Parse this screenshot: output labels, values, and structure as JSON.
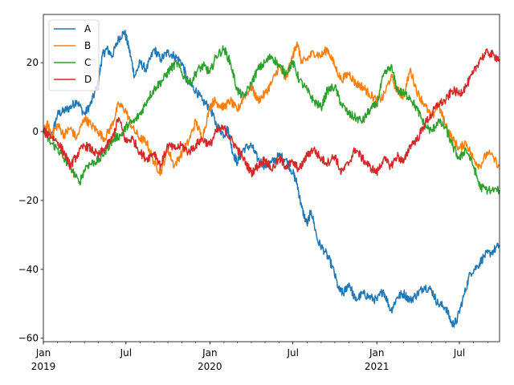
{
  "chart_data": {
    "type": "line",
    "x_axis": {
      "kind": "date",
      "start": "2019-01-01",
      "end": "2021-09-27",
      "major_ticks": [
        {
          "date": "2019-01-01",
          "label": "Jan",
          "sublabel": "2019"
        },
        {
          "date": "2019-07-01",
          "label": "Jul",
          "sublabel": ""
        },
        {
          "date": "2020-01-01",
          "label": "Jan",
          "sublabel": "2020"
        },
        {
          "date": "2020-07-01",
          "label": "Jul",
          "sublabel": ""
        },
        {
          "date": "2021-01-01",
          "label": "Jan",
          "sublabel": "2021"
        },
        {
          "date": "2021-07-01",
          "label": "Jul",
          "sublabel": ""
        }
      ],
      "minor_ticks": "monthly"
    },
    "y_axis": {
      "ylim": [
        -61,
        34
      ],
      "ticks": [
        {
          "value": 20,
          "label": "20"
        },
        {
          "value": 0,
          "label": "0"
        },
        {
          "value": -20,
          "label": "−20"
        },
        {
          "value": -40,
          "label": "−40"
        },
        {
          "value": -60,
          "label": "−60"
        }
      ]
    },
    "grid": false,
    "legend_placement": "top-left",
    "series": [
      {
        "name": "A",
        "color": "#1f77b4",
        "points": [
          [
            "2019-01-01",
            0
          ],
          [
            "2019-01-20",
            -1
          ],
          [
            "2019-02-01",
            5
          ],
          [
            "2019-02-15",
            6
          ],
          [
            "2019-03-01",
            7
          ],
          [
            "2019-03-15",
            9
          ],
          [
            "2019-04-01",
            5
          ],
          [
            "2019-04-15",
            8
          ],
          [
            "2019-05-01",
            14
          ],
          [
            "2019-05-10",
            22
          ],
          [
            "2019-05-20",
            24
          ],
          [
            "2019-06-01",
            22
          ],
          [
            "2019-06-15",
            27
          ],
          [
            "2019-06-28",
            29
          ],
          [
            "2019-07-08",
            24
          ],
          [
            "2019-07-20",
            16
          ],
          [
            "2019-08-01",
            20
          ],
          [
            "2019-08-15",
            18
          ],
          [
            "2019-09-01",
            24
          ],
          [
            "2019-09-15",
            21
          ],
          [
            "2019-10-01",
            23
          ],
          [
            "2019-10-15",
            22
          ],
          [
            "2019-11-01",
            20
          ],
          [
            "2019-11-15",
            14
          ],
          [
            "2019-12-01",
            12
          ],
          [
            "2019-12-15",
            9
          ],
          [
            "2020-01-01",
            7
          ],
          [
            "2020-01-15",
            2
          ],
          [
            "2020-02-01",
            -1
          ],
          [
            "2020-02-10",
            1
          ],
          [
            "2020-02-20",
            -6
          ],
          [
            "2020-03-01",
            -9
          ],
          [
            "2020-03-15",
            -5
          ],
          [
            "2020-04-01",
            -4
          ],
          [
            "2020-04-15",
            -8
          ],
          [
            "2020-05-01",
            -10
          ],
          [
            "2020-05-15",
            -9
          ],
          [
            "2020-06-01",
            -7
          ],
          [
            "2020-06-15",
            -8
          ],
          [
            "2020-07-01",
            -12
          ],
          [
            "2020-07-10",
            -15
          ],
          [
            "2020-07-20",
            -22
          ],
          [
            "2020-08-01",
            -27
          ],
          [
            "2020-08-10",
            -23
          ],
          [
            "2020-08-25",
            -32
          ],
          [
            "2020-09-10",
            -35
          ],
          [
            "2020-09-25",
            -39
          ],
          [
            "2020-10-10",
            -46
          ],
          [
            "2020-10-20",
            -47
          ],
          [
            "2020-11-01",
            -44
          ],
          [
            "2020-11-15",
            -49
          ],
          [
            "2020-12-01",
            -47
          ],
          [
            "2020-12-15",
            -48
          ],
          [
            "2021-01-01",
            -49
          ],
          [
            "2021-01-15",
            -46
          ],
          [
            "2021-02-01",
            -52
          ],
          [
            "2021-02-15",
            -48
          ],
          [
            "2021-03-01",
            -47
          ],
          [
            "2021-03-15",
            -49
          ],
          [
            "2021-04-01",
            -47
          ],
          [
            "2021-04-15",
            -45
          ],
          [
            "2021-05-01",
            -46
          ],
          [
            "2021-05-15",
            -50
          ],
          [
            "2021-06-01",
            -51
          ],
          [
            "2021-06-15",
            -56
          ],
          [
            "2021-06-25",
            -55
          ],
          [
            "2021-07-10",
            -48
          ],
          [
            "2021-07-25",
            -41
          ],
          [
            "2021-08-10",
            -39
          ],
          [
            "2021-08-25",
            -36
          ],
          [
            "2021-09-10",
            -35
          ],
          [
            "2021-09-27",
            -33
          ]
        ]
      },
      {
        "name": "B",
        "color": "#ff7f0e",
        "points": [
          [
            "2019-01-01",
            0
          ],
          [
            "2019-01-10",
            2
          ],
          [
            "2019-01-20",
            -1
          ],
          [
            "2019-02-01",
            2
          ],
          [
            "2019-02-15",
            -1
          ],
          [
            "2019-03-01",
            1
          ],
          [
            "2019-03-15",
            -2
          ],
          [
            "2019-04-01",
            4
          ],
          [
            "2019-04-15",
            2
          ],
          [
            "2019-05-01",
            0
          ],
          [
            "2019-05-15",
            -2
          ],
          [
            "2019-06-01",
            2
          ],
          [
            "2019-06-15",
            8
          ],
          [
            "2019-07-01",
            6
          ],
          [
            "2019-07-15",
            1
          ],
          [
            "2019-08-01",
            -2
          ],
          [
            "2019-08-15",
            -3
          ],
          [
            "2019-09-01",
            -9
          ],
          [
            "2019-09-15",
            -12
          ],
          [
            "2019-10-01",
            -5
          ],
          [
            "2019-10-15",
            -10
          ],
          [
            "2019-11-01",
            -6
          ],
          [
            "2019-11-15",
            -3
          ],
          [
            "2019-12-01",
            3
          ],
          [
            "2019-12-15",
            -2
          ],
          [
            "2020-01-01",
            7
          ],
          [
            "2020-01-10",
            9
          ],
          [
            "2020-01-20",
            8
          ],
          [
            "2020-02-01",
            7
          ],
          [
            "2020-02-15",
            9
          ],
          [
            "2020-03-01",
            6
          ],
          [
            "2020-03-15",
            10
          ],
          [
            "2020-04-01",
            13
          ],
          [
            "2020-04-15",
            9
          ],
          [
            "2020-05-01",
            11
          ],
          [
            "2020-05-15",
            14
          ],
          [
            "2020-06-01",
            19
          ],
          [
            "2020-06-15",
            15
          ],
          [
            "2020-07-01",
            22
          ],
          [
            "2020-07-10",
            26
          ],
          [
            "2020-07-20",
            20
          ],
          [
            "2020-08-01",
            21
          ],
          [
            "2020-08-15",
            23
          ],
          [
            "2020-09-01",
            22
          ],
          [
            "2020-09-15",
            24
          ],
          [
            "2020-10-01",
            19
          ],
          [
            "2020-10-15",
            15
          ],
          [
            "2020-11-01",
            17
          ],
          [
            "2020-11-15",
            14
          ],
          [
            "2020-12-01",
            13
          ],
          [
            "2020-12-15",
            11
          ],
          [
            "2021-01-01",
            9
          ],
          [
            "2021-01-15",
            10
          ],
          [
            "2021-02-01",
            16
          ],
          [
            "2021-02-15",
            12
          ],
          [
            "2021-03-01",
            10
          ],
          [
            "2021-03-15",
            18
          ],
          [
            "2021-04-01",
            11
          ],
          [
            "2021-04-15",
            8
          ],
          [
            "2021-05-01",
            4
          ],
          [
            "2021-05-15",
            8
          ],
          [
            "2021-06-01",
            2
          ],
          [
            "2021-06-15",
            -2
          ],
          [
            "2021-07-01",
            -5
          ],
          [
            "2021-07-15",
            -3
          ],
          [
            "2021-08-01",
            -8
          ],
          [
            "2021-08-15",
            -10
          ],
          [
            "2021-09-01",
            -6
          ],
          [
            "2021-09-27",
            -10
          ]
        ]
      },
      {
        "name": "C",
        "color": "#2ca02c",
        "points": [
          [
            "2019-01-01",
            0
          ],
          [
            "2019-01-15",
            -3
          ],
          [
            "2019-02-01",
            -5
          ],
          [
            "2019-02-15",
            -8
          ],
          [
            "2019-03-01",
            -10
          ],
          [
            "2019-03-20",
            -15
          ],
          [
            "2019-04-05",
            -10
          ],
          [
            "2019-04-20",
            -9
          ],
          [
            "2019-05-05",
            -8
          ],
          [
            "2019-05-20",
            -5
          ],
          [
            "2019-06-05",
            -2
          ],
          [
            "2019-06-20",
            -1
          ],
          [
            "2019-07-05",
            2
          ],
          [
            "2019-07-20",
            3
          ],
          [
            "2019-08-05",
            6
          ],
          [
            "2019-08-20",
            10
          ],
          [
            "2019-09-05",
            13
          ],
          [
            "2019-09-20",
            15
          ],
          [
            "2019-10-05",
            18
          ],
          [
            "2019-10-20",
            20
          ],
          [
            "2019-11-05",
            16
          ],
          [
            "2019-11-20",
            14
          ],
          [
            "2019-12-05",
            18
          ],
          [
            "2019-12-20",
            19
          ],
          [
            "2020-01-01",
            17
          ],
          [
            "2020-01-15",
            22
          ],
          [
            "2020-02-01",
            24
          ],
          [
            "2020-02-15",
            20
          ],
          [
            "2020-03-01",
            12
          ],
          [
            "2020-03-15",
            10
          ],
          [
            "2020-04-01",
            14
          ],
          [
            "2020-04-15",
            18
          ],
          [
            "2020-05-01",
            20
          ],
          [
            "2020-05-15",
            22
          ],
          [
            "2020-06-01",
            19
          ],
          [
            "2020-06-15",
            17
          ],
          [
            "2020-07-01",
            20
          ],
          [
            "2020-07-15",
            15
          ],
          [
            "2020-08-01",
            12
          ],
          [
            "2020-08-15",
            9
          ],
          [
            "2020-09-01",
            7
          ],
          [
            "2020-09-15",
            12
          ],
          [
            "2020-10-01",
            13
          ],
          [
            "2020-10-15",
            8
          ],
          [
            "2020-11-01",
            5
          ],
          [
            "2020-11-15",
            4
          ],
          [
            "2020-12-01",
            3
          ],
          [
            "2020-12-15",
            6
          ],
          [
            "2021-01-01",
            8
          ],
          [
            "2021-01-15",
            16
          ],
          [
            "2021-02-01",
            19
          ],
          [
            "2021-02-15",
            12
          ],
          [
            "2021-03-01",
            11
          ],
          [
            "2021-03-15",
            10
          ],
          [
            "2021-04-01",
            6
          ],
          [
            "2021-04-15",
            2
          ],
          [
            "2021-05-01",
            0
          ],
          [
            "2021-05-15",
            3
          ],
          [
            "2021-06-01",
            1
          ],
          [
            "2021-06-15",
            -4
          ],
          [
            "2021-07-01",
            -8
          ],
          [
            "2021-07-15",
            -5
          ],
          [
            "2021-08-01",
            -10
          ],
          [
            "2021-08-15",
            -16
          ],
          [
            "2021-09-01",
            -17
          ],
          [
            "2021-09-27",
            -17
          ]
        ]
      },
      {
        "name": "D",
        "color": "#d62728",
        "points": [
          [
            "2019-01-01",
            0
          ],
          [
            "2019-01-15",
            -1
          ],
          [
            "2019-02-01",
            -3
          ],
          [
            "2019-02-15",
            -6
          ],
          [
            "2019-03-01",
            -10
          ],
          [
            "2019-03-15",
            -7
          ],
          [
            "2019-04-01",
            -4
          ],
          [
            "2019-04-15",
            -5
          ],
          [
            "2019-05-01",
            -7
          ],
          [
            "2019-05-15",
            -5
          ],
          [
            "2019-06-01",
            -2
          ],
          [
            "2019-06-15",
            4
          ],
          [
            "2019-07-01",
            -3
          ],
          [
            "2019-07-15",
            -2
          ],
          [
            "2019-08-01",
            -6
          ],
          [
            "2019-08-15",
            -8
          ],
          [
            "2019-09-01",
            -6
          ],
          [
            "2019-09-15",
            -10
          ],
          [
            "2019-10-01",
            -4
          ],
          [
            "2019-10-15",
            -5
          ],
          [
            "2019-11-01",
            -4
          ],
          [
            "2019-11-15",
            -6
          ],
          [
            "2019-12-01",
            -4
          ],
          [
            "2019-12-15",
            -2
          ],
          [
            "2020-01-01",
            -4
          ],
          [
            "2020-01-15",
            0
          ],
          [
            "2020-02-01",
            1
          ],
          [
            "2020-02-15",
            -2
          ],
          [
            "2020-03-01",
            -5
          ],
          [
            "2020-03-15",
            -8
          ],
          [
            "2020-04-01",
            -12
          ],
          [
            "2020-04-15",
            -10
          ],
          [
            "2020-05-01",
            -8
          ],
          [
            "2020-05-15",
            -11
          ],
          [
            "2020-06-01",
            -8
          ],
          [
            "2020-06-15",
            -10
          ],
          [
            "2020-07-01",
            -9
          ],
          [
            "2020-07-15",
            -11
          ],
          [
            "2020-08-01",
            -7
          ],
          [
            "2020-08-15",
            -5
          ],
          [
            "2020-09-01",
            -8
          ],
          [
            "2020-09-15",
            -9
          ],
          [
            "2020-10-01",
            -7
          ],
          [
            "2020-10-15",
            -12
          ],
          [
            "2020-11-01",
            -9
          ],
          [
            "2020-11-15",
            -5
          ],
          [
            "2020-12-01",
            -8
          ],
          [
            "2020-12-15",
            -10
          ],
          [
            "2021-01-01",
            -12
          ],
          [
            "2021-01-15",
            -8
          ],
          [
            "2021-02-01",
            -10
          ],
          [
            "2021-02-15",
            -7
          ],
          [
            "2021-03-01",
            -9
          ],
          [
            "2021-03-15",
            -4
          ],
          [
            "2021-04-01",
            -2
          ],
          [
            "2021-04-15",
            2
          ],
          [
            "2021-05-01",
            5
          ],
          [
            "2021-05-15",
            8
          ],
          [
            "2021-06-01",
            9
          ],
          [
            "2021-06-15",
            12
          ],
          [
            "2021-07-01",
            11
          ],
          [
            "2021-07-15",
            13
          ],
          [
            "2021-08-01",
            17
          ],
          [
            "2021-08-15",
            21
          ],
          [
            "2021-09-01",
            23
          ],
          [
            "2021-09-15",
            22
          ],
          [
            "2021-09-27",
            21
          ]
        ]
      }
    ]
  }
}
